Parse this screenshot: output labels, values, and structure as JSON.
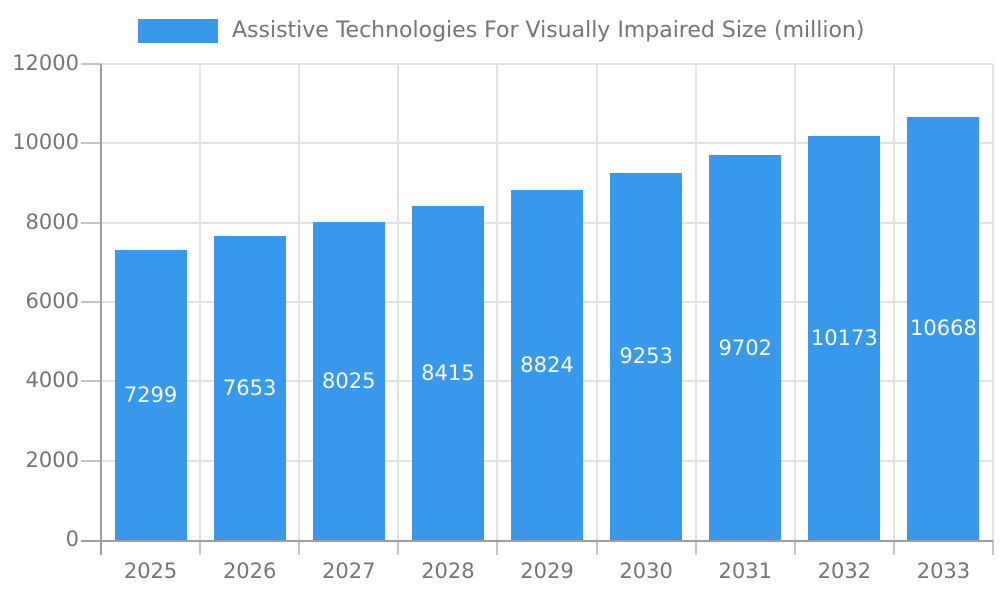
{
  "chart_data": {
    "type": "bar",
    "title": "Assistive Technologies For Visually Impaired Size (million)",
    "legend": {
      "position": "top",
      "label": "Assistive Technologies For Visually Impaired Size (million)"
    },
    "categories": [
      "2025",
      "2026",
      "2027",
      "2028",
      "2029",
      "2030",
      "2031",
      "2032",
      "2033"
    ],
    "values": [
      7299,
      7653,
      8025,
      8415,
      8824,
      9253,
      9702,
      10173,
      10668
    ],
    "xlabel": "",
    "ylabel": "",
    "ylim": [
      0,
      12000
    ],
    "yticks": [
      0,
      2000,
      4000,
      6000,
      8000,
      10000,
      12000
    ],
    "grid": true,
    "colors": {
      "bar": "#3899EC",
      "value_label": "#ffffff",
      "axis_text": "#757575",
      "grid_line": "#e2e2e2",
      "tick_line": "#c4c4c4",
      "axis_line": "#9e9e9e"
    }
  }
}
